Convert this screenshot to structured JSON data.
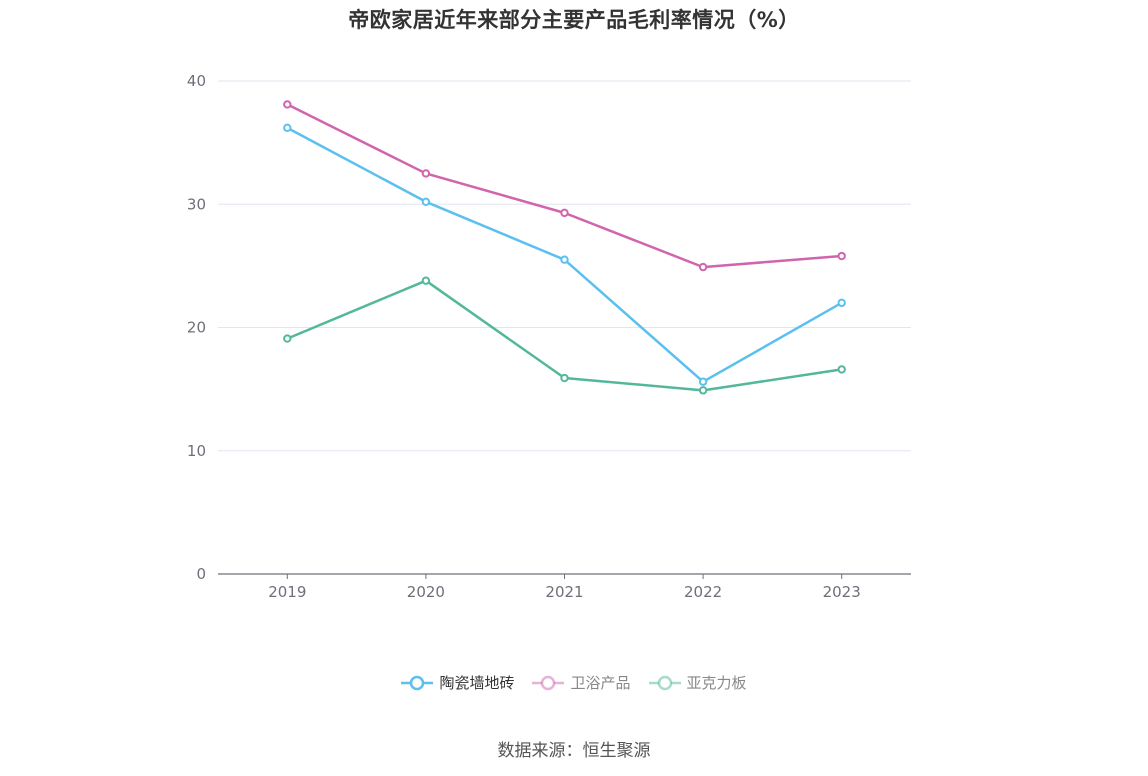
{
  "title": "帝欧家居近年来部分主要产品毛利率情况（%）",
  "source": "数据来源：恒生聚源",
  "colors": {
    "axis": "#6e7079",
    "grid": "#e0e6f1",
    "tick_text": "#6e7079"
  },
  "chart_data": {
    "type": "line",
    "title": "帝欧家居近年来部分主要产品毛利率情况（%）",
    "xlabel": "",
    "ylabel": "",
    "categories": [
      "2019",
      "2020",
      "2021",
      "2022",
      "2023"
    ],
    "ylim": [
      0,
      40
    ],
    "yticks": [
      0,
      10,
      20,
      30,
      40
    ],
    "grid": true,
    "legend_position": "bottom",
    "series": [
      {
        "name": "陶瓷墙地砖",
        "color": "#5bc0f0",
        "values": [
          36.2,
          30.2,
          25.5,
          15.6,
          22.0
        ]
      },
      {
        "name": "卫浴产品",
        "color": "#d065ad",
        "values": [
          38.1,
          32.5,
          29.3,
          24.9,
          25.8
        ]
      },
      {
        "name": "亚克力板",
        "color": "#53b89b",
        "values": [
          19.1,
          23.8,
          15.9,
          14.9,
          16.6
        ]
      }
    ]
  }
}
